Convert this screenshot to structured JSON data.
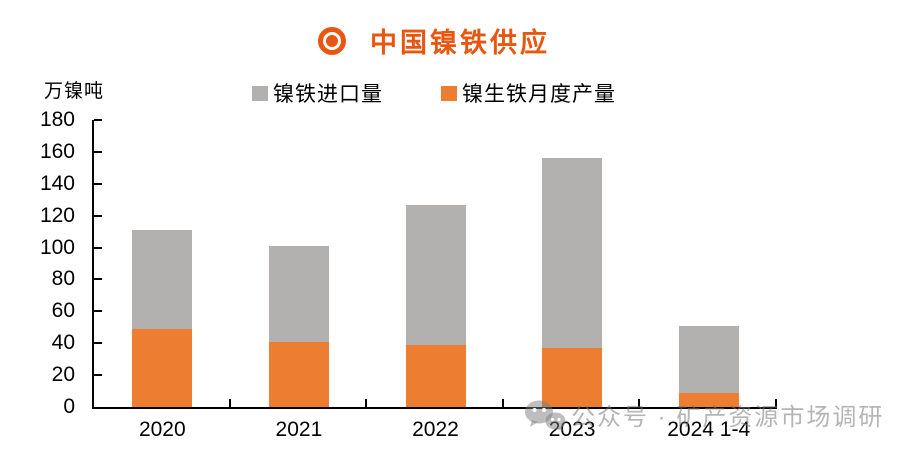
{
  "title": {
    "text": "中国镍铁供应"
  },
  "legend": {
    "items": [
      {
        "label": "镍铁进口量",
        "color": "#B3B1B0"
      },
      {
        "label": "镍生铁月度产量",
        "color": "#ED7D31"
      }
    ]
  },
  "watermark": {
    "icon": "wechat-icon",
    "text": "公众号 · 矿产资源市场调研"
  },
  "colors": {
    "title_accent": "#E8560F",
    "bar_imports": "#B3B1B0",
    "bar_npi": "#ED7D31",
    "axis": "#000000",
    "watermark": "#C4C4C4"
  },
  "chart_data": {
    "type": "bar",
    "stacked": true,
    "title": "中国镍铁供应",
    "categories": [
      "2020",
      "2021",
      "2022",
      "2023",
      "2024 1-4"
    ],
    "series": [
      {
        "name": "镍生铁月度产量",
        "color": "#ED7D31",
        "values": [
          49,
          41,
          39,
          37,
          9
        ]
      },
      {
        "name": "镍铁进口量",
        "color": "#B3B1B0",
        "values": [
          62,
          60,
          88,
          119,
          42
        ]
      }
    ],
    "stack_totals": [
      111,
      101,
      127,
      156,
      51
    ],
    "xlabel": "",
    "ylabel": "万镍吨",
    "ylim": [
      0,
      180
    ],
    "ytick_step": 20,
    "grid": false,
    "legend_position": "top"
  }
}
